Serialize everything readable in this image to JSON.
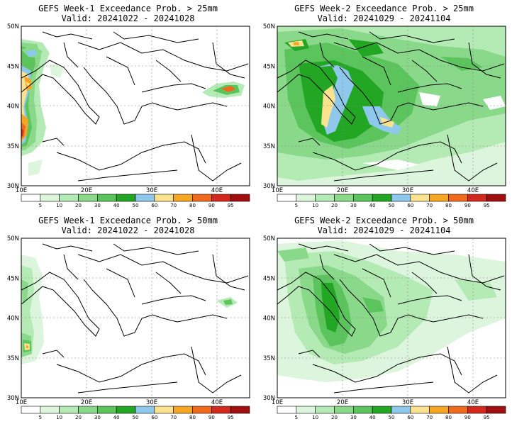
{
  "colorbar": {
    "levels": [
      "5",
      "10",
      "20",
      "30",
      "40",
      "50",
      "60",
      "70",
      "80",
      "90",
      "95"
    ],
    "colors": [
      "#ffffff",
      "#dcf5dc",
      "#b4eab4",
      "#8ad98a",
      "#5cc45c",
      "#23a623",
      "#8ec8ea",
      "#fbe28e",
      "#f5a623",
      "#f06a1e",
      "#d2281e",
      "#a00f0f"
    ]
  },
  "axes": {
    "lat_labels": [
      "50N",
      "45N",
      "40N",
      "35N",
      "30N"
    ],
    "lon_labels": [
      "10E",
      "20E",
      "30E",
      "40E"
    ]
  },
  "panels": [
    {
      "title": "GEFS Week-1 Exceedance Prob. > 25mm",
      "valid": "Valid: 20241022 - 20241028"
    },
    {
      "title": "GEFS Week-2 Exceedance Prob. > 25mm",
      "valid": "Valid: 20241029 - 20241104"
    },
    {
      "title": "GEFS Week-1 Exceedance Prob. > 50mm",
      "valid": "Valid: 20241022 - 20241028"
    },
    {
      "title": "GEFS Week-2 Exceedance Prob. > 50mm",
      "valid": "Valid: 20241029 - 20241104"
    }
  ]
}
